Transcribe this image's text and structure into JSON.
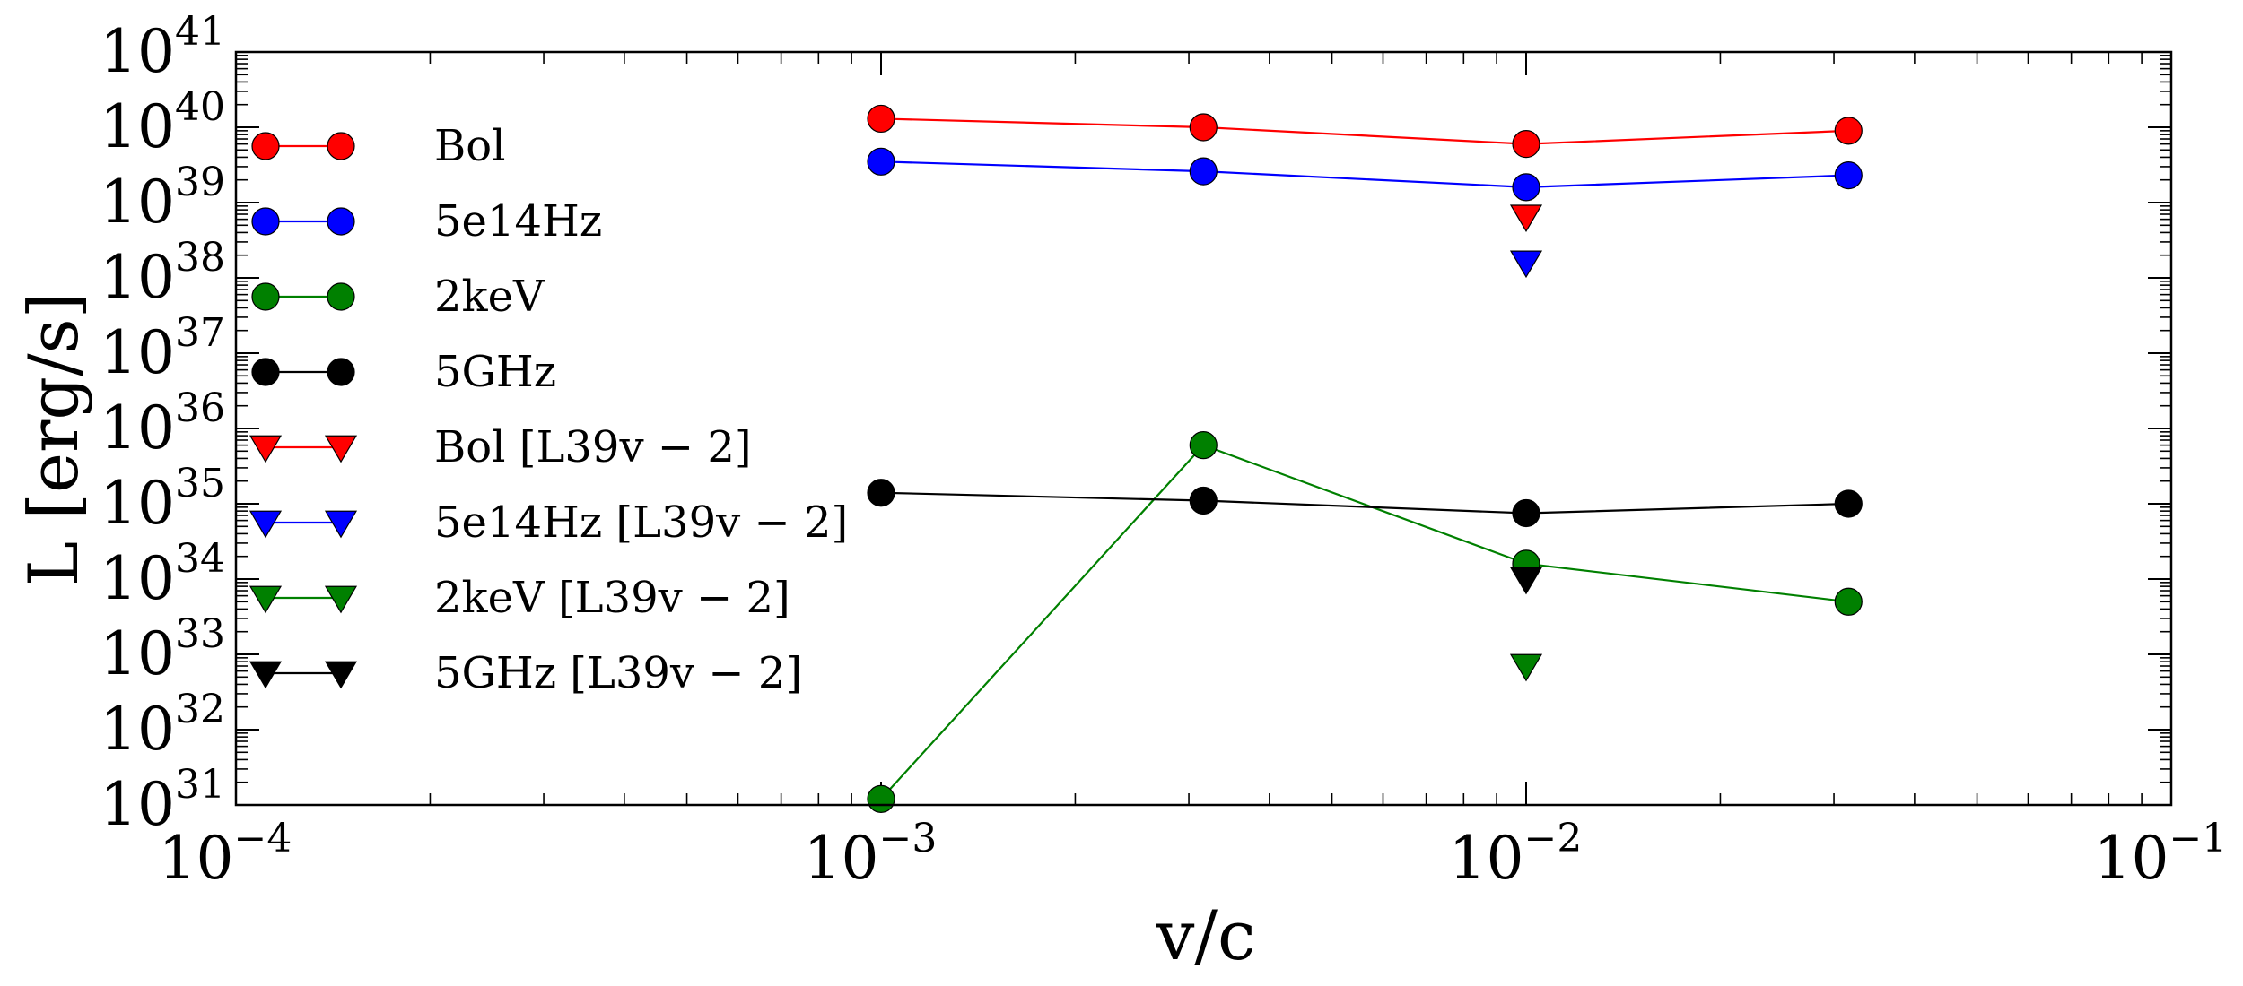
{
  "chart_data": {
    "type": "line",
    "title": "",
    "xlabel": "v/c",
    "ylabel": "L [erg/s]",
    "xscale": "log",
    "yscale": "log",
    "xlim": [
      0.0001,
      0.1
    ],
    "ylim": [
      1e+31,
      1e+41
    ],
    "grid": false,
    "legend_position": "left",
    "x_tick_labels": [
      {
        "value": 0.0001,
        "base": "10",
        "exp": "−4"
      },
      {
        "value": 0.001,
        "base": "10",
        "exp": "−3"
      },
      {
        "value": 0.01,
        "base": "10",
        "exp": "−2"
      },
      {
        "value": 0.1,
        "base": "10",
        "exp": "−1"
      }
    ],
    "y_tick_labels": [
      {
        "value": 1e+31,
        "base": "10",
        "exp": "31"
      },
      {
        "value": 1e+32,
        "base": "10",
        "exp": "32"
      },
      {
        "value": 1e+33,
        "base": "10",
        "exp": "33"
      },
      {
        "value": 1e+34,
        "base": "10",
        "exp": "34"
      },
      {
        "value": 1e+35,
        "base": "10",
        "exp": "35"
      },
      {
        "value": 1e+36,
        "base": "10",
        "exp": "36"
      },
      {
        "value": 1e+37,
        "base": "10",
        "exp": "37"
      },
      {
        "value": 1e+38,
        "base": "10",
        "exp": "38"
      },
      {
        "value": 1e+39,
        "base": "10",
        "exp": "39"
      },
      {
        "value": 1e+40,
        "base": "10",
        "exp": "40"
      },
      {
        "value": 1e+41,
        "base": "10",
        "exp": "41"
      }
    ],
    "series": [
      {
        "name": "Bol",
        "color": "#ff0000",
        "marker": "circle",
        "line": true,
        "x": [
          0.001,
          0.00316,
          0.01,
          0.0316
        ],
        "y": [
          1.3e+40,
          1e+40,
          6e+39,
          9e+39
        ]
      },
      {
        "name": "5e14Hz",
        "color": "#0000ff",
        "marker": "circle",
        "line": true,
        "x": [
          0.001,
          0.00316,
          0.01,
          0.0316
        ],
        "y": [
          3.5e+39,
          2.6e+39,
          1.6e+39,
          2.3e+39
        ]
      },
      {
        "name": "2keV",
        "color": "#008000",
        "marker": "circle",
        "line": true,
        "x": [
          0.001,
          0.00316,
          0.01,
          0.0316
        ],
        "y": [
          1.2e+31,
          6e+35,
          1.6e+34,
          5e+33
        ]
      },
      {
        "name": "5GHz",
        "color": "#000000",
        "marker": "circle",
        "line": true,
        "x": [
          0.001,
          0.00316,
          0.01,
          0.0316
        ],
        "y": [
          1.4e+35,
          1.1e+35,
          7.5e+34,
          1e+35
        ]
      },
      {
        "name": "Bol [L39v − 2]",
        "color": "#ff0000",
        "marker": "triangle-down",
        "line": true,
        "x": [
          0.01
        ],
        "y": [
          6.5e+38
        ]
      },
      {
        "name": "5e14Hz [L39v − 2]",
        "color": "#0000ff",
        "marker": "triangle-down",
        "line": true,
        "x": [
          0.01
        ],
        "y": [
          1.6e+38
        ]
      },
      {
        "name": "2keV [L39v − 2]",
        "color": "#008000",
        "marker": "triangle-down",
        "line": true,
        "x": [
          0.01
        ],
        "y": [
          7e+32
        ]
      },
      {
        "name": "5GHz [L39v − 2]",
        "color": "#000000",
        "marker": "triangle-down",
        "line": true,
        "x": [
          0.01
        ],
        "y": [
          1e+34
        ]
      }
    ]
  }
}
